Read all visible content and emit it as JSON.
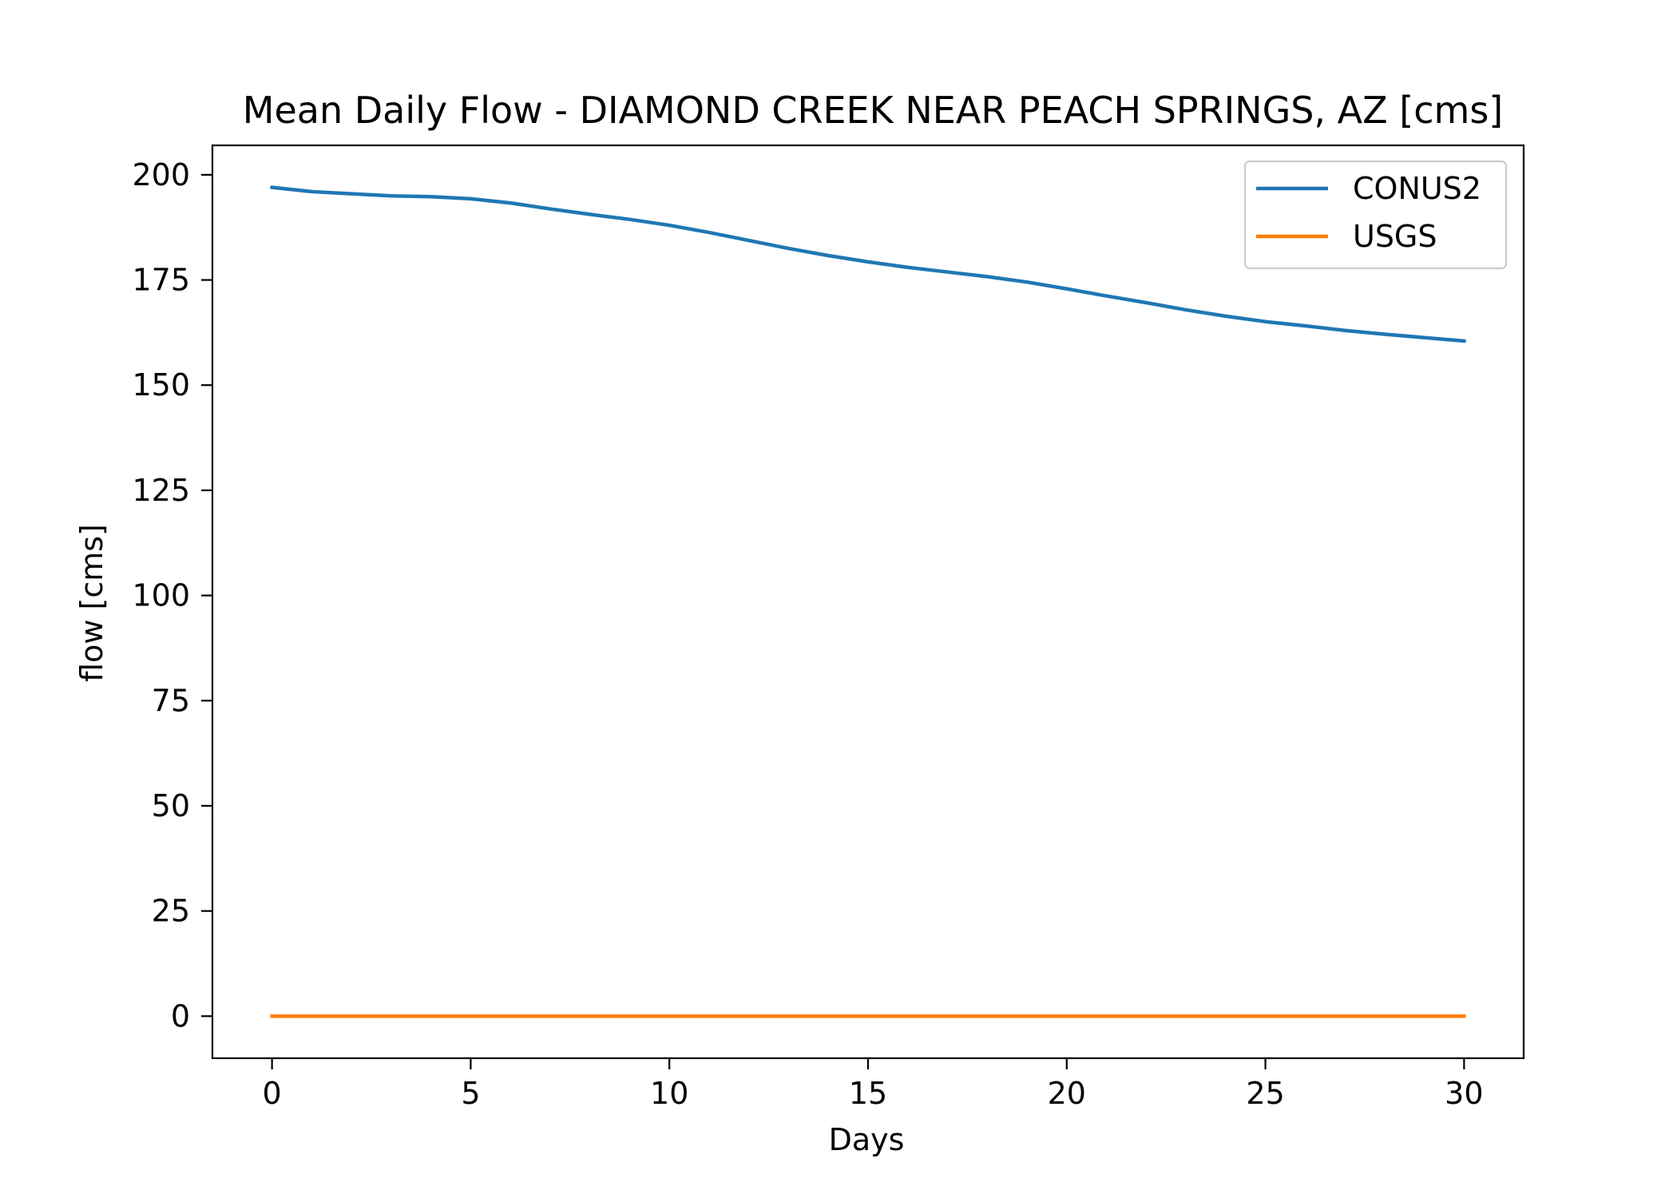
{
  "chart_data": {
    "type": "line",
    "title": "Mean Daily Flow - DIAMOND CREEK NEAR PEACH SPRINGS, AZ [cms]",
    "xlabel": "Days",
    "ylabel": "flow [cms]",
    "xlim": [
      -1.5,
      31.5
    ],
    "ylim": [
      -10,
      207
    ],
    "xticks": [
      0,
      5,
      10,
      15,
      20,
      25,
      30
    ],
    "yticks": [
      0,
      25,
      50,
      75,
      100,
      125,
      150,
      175,
      200
    ],
    "grid": false,
    "legend_position": "top-right",
    "x": [
      0,
      1,
      2,
      3,
      4,
      5,
      6,
      7,
      8,
      9,
      10,
      11,
      12,
      13,
      14,
      15,
      16,
      17,
      18,
      19,
      20,
      21,
      22,
      23,
      24,
      25,
      26,
      27,
      28,
      29,
      30
    ],
    "series": [
      {
        "name": "CONUS2",
        "color": "#1f77b4",
        "values": [
          197.0,
          196.0,
          195.5,
          195.0,
          194.8,
          194.3,
          193.3,
          191.9,
          190.6,
          189.4,
          188.0,
          186.3,
          184.4,
          182.5,
          180.8,
          179.3,
          178.0,
          176.9,
          175.8,
          174.5,
          172.9,
          171.2,
          169.6,
          167.9,
          166.4,
          165.1,
          164.1,
          163.0,
          162.1,
          161.3,
          160.5
        ]
      },
      {
        "name": "USGS",
        "color": "#ff7f0e",
        "values": [
          0,
          0,
          0,
          0,
          0,
          0,
          0,
          0,
          0,
          0,
          0,
          0,
          0,
          0,
          0,
          0,
          0,
          0,
          0,
          0,
          0,
          0,
          0,
          0,
          0,
          0,
          0,
          0,
          0,
          0,
          0
        ]
      }
    ]
  }
}
